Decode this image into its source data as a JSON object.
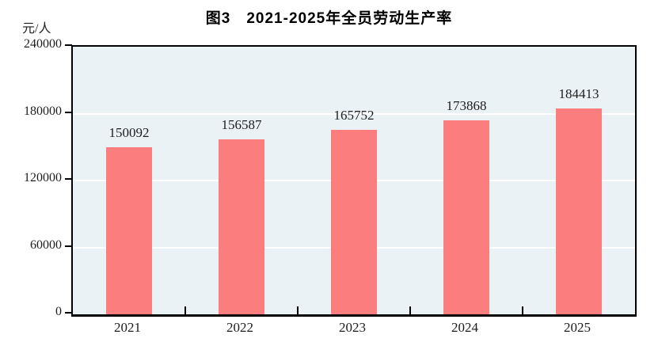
{
  "title": "图3　2021-2025年全员劳动生产率",
  "chart_data": {
    "type": "bar",
    "title": "图3　2021-2025年全员劳动生产率",
    "unit_label": "元/人",
    "categories": [
      "2021",
      "2022",
      "2023",
      "2024",
      "2025"
    ],
    "values": [
      150092,
      156587,
      165752,
      173868,
      184413
    ],
    "value_labels": [
      "150092",
      "156587",
      "165752",
      "173868",
      "184413"
    ],
    "ylim": [
      0,
      240000
    ],
    "yticks": [
      0,
      60000,
      120000,
      180000,
      240000
    ],
    "ytick_labels": [
      "0",
      "60000",
      "120000",
      "180000",
      "240000"
    ],
    "grid": "horizontal-white",
    "legend": "none",
    "colors": {
      "bar": "#fc7d7d",
      "plot_background": "#ebf2f6",
      "gridline": "#ffffff",
      "axis": "#000000",
      "text": "#1d1d1d"
    }
  }
}
